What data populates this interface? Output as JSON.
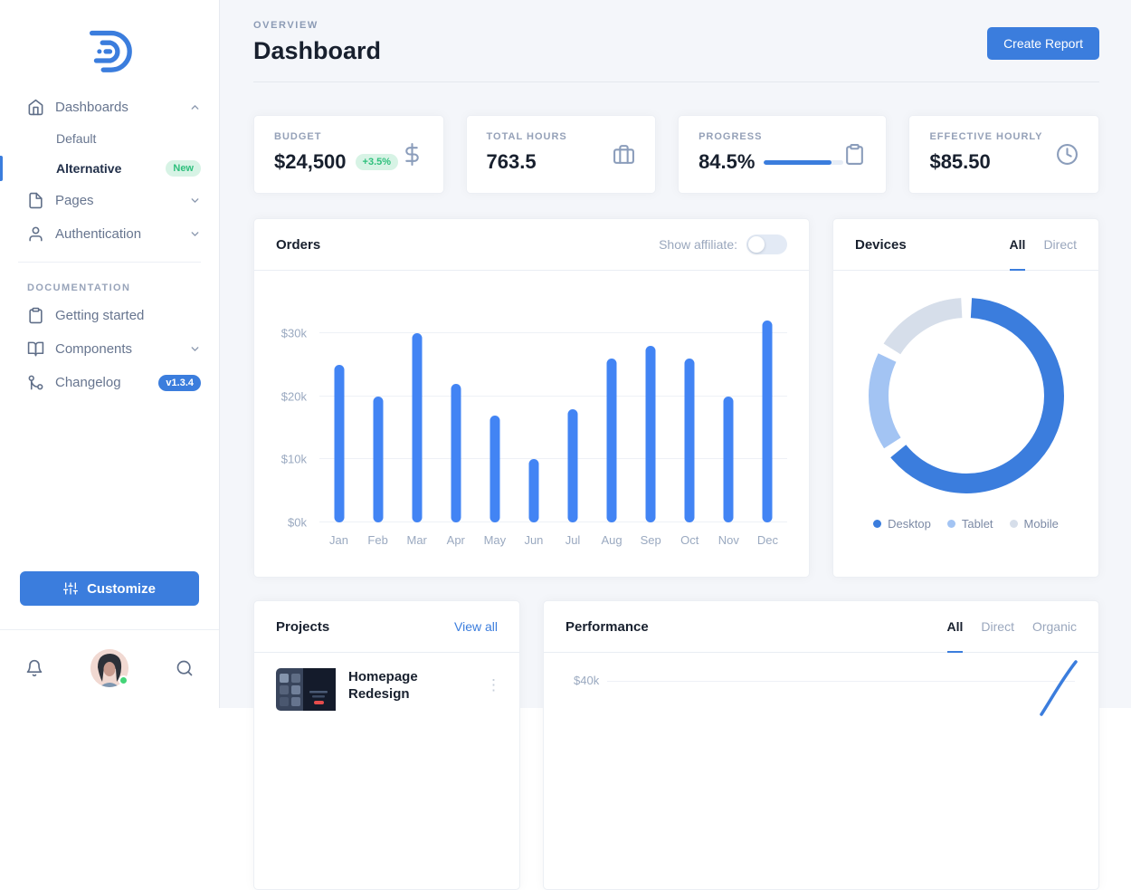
{
  "colors": {
    "primary": "#3b7ddd",
    "bar_blue": "#4284f4",
    "success_green": "#2fc07d",
    "status_dot_green": "#43d477",
    "background": "#f4f6fa"
  },
  "sidebar": {
    "nav": [
      {
        "label": "Dashboards",
        "icon": "home-icon",
        "chevron": "up",
        "children": [
          {
            "label": "Default"
          },
          {
            "label": "Alternative",
            "active": true,
            "badge": "New"
          }
        ]
      },
      {
        "label": "Pages",
        "icon": "file-icon",
        "chevron": "down"
      },
      {
        "label": "Authentication",
        "icon": "user-icon",
        "chevron": "down"
      }
    ],
    "section_label": "DOCUMENTATION",
    "docs": [
      {
        "label": "Getting started",
        "icon": "clipboard-icon"
      },
      {
        "label": "Components",
        "icon": "book-icon",
        "chevron": "down"
      },
      {
        "label": "Changelog",
        "icon": "git-branch-icon",
        "badge": "v1.3.4"
      }
    ],
    "customize_label": "Customize"
  },
  "header": {
    "eyebrow": "OVERVIEW",
    "title": "Dashboard",
    "create_report_label": "Create Report"
  },
  "stats": [
    {
      "label": "BUDGET",
      "value": "$24,500",
      "delta": "+3.5%",
      "icon": "dollar-icon"
    },
    {
      "label": "TOTAL HOURS",
      "value": "763.5",
      "icon": "briefcase-icon"
    },
    {
      "label": "PROGRESS",
      "value": "84.5%",
      "progress_pct": 84.5,
      "icon": "clipboard-icon"
    },
    {
      "label": "EFFECTIVE HOURLY",
      "value": "$85.50",
      "icon": "clock-icon"
    }
  ],
  "orders_card": {
    "title": "Orders",
    "toggle_label": "Show affiliate:",
    "toggle_on": false
  },
  "devices_card": {
    "title": "Devices",
    "tabs": [
      "All",
      "Direct"
    ],
    "active_tab": "All"
  },
  "projects_card": {
    "title": "Projects",
    "view_all_label": "View all",
    "items": [
      {
        "title": "Homepage Redesign"
      }
    ]
  },
  "performance_card": {
    "title": "Performance",
    "tabs": [
      "All",
      "Direct",
      "Organic"
    ],
    "active_tab": "All"
  },
  "chart_data": [
    {
      "id": "orders",
      "type": "bar",
      "title": "Orders",
      "categories": [
        "Jan",
        "Feb",
        "Mar",
        "Apr",
        "May",
        "Jun",
        "Jul",
        "Aug",
        "Sep",
        "Oct",
        "Nov",
        "Dec"
      ],
      "values": [
        25000,
        20000,
        30000,
        22000,
        17000,
        10000,
        18000,
        26000,
        28000,
        26000,
        20000,
        32000
      ],
      "yticks": [
        {
          "label": "$0k",
          "value": 0
        },
        {
          "label": "$10k",
          "value": 10000
        },
        {
          "label": "$20k",
          "value": 20000
        },
        {
          "label": "$30k",
          "value": 30000
        }
      ],
      "ylim": [
        0,
        33000
      ],
      "plot_max": 33000,
      "bar_color": "#4284f4",
      "grid": true,
      "legend": false
    },
    {
      "id": "devices",
      "type": "donut",
      "title": "Devices",
      "labels": [
        "Desktop",
        "Tablet",
        "Mobile"
      ],
      "values": [
        65,
        18,
        17
      ],
      "values_unit": "percent (estimated from arc angles)",
      "colors": [
        "#3b7ddd",
        "#a3c4f3",
        "#d6deea"
      ],
      "legend_position": "bottom"
    },
    {
      "id": "performance",
      "type": "line",
      "title": "Performance",
      "visible_yticks": [
        "$40k"
      ],
      "line_color": "#3b7ddd",
      "note": "chart truncated by viewport bottom; only a rising line segment at right edge is visible"
    }
  ]
}
